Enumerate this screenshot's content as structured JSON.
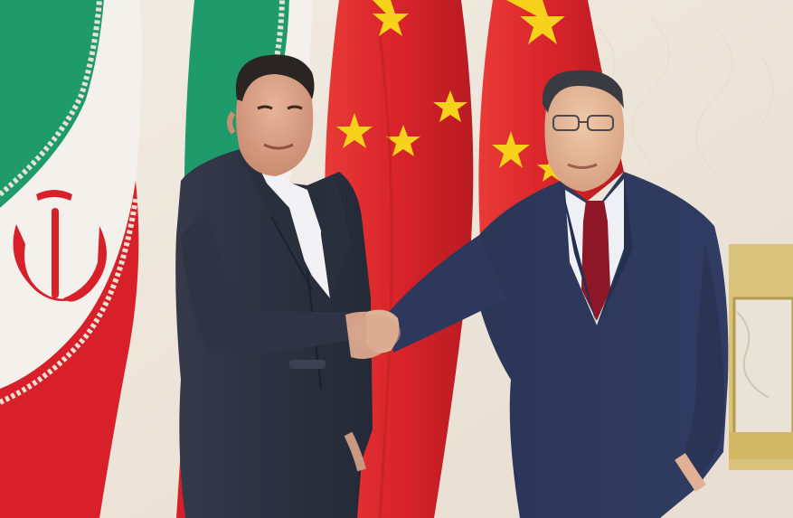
{
  "scene": {
    "subject": "handshake",
    "colors": {
      "iran_green": "#1f9a6a",
      "iran_white": "#f4f1ec",
      "iran_red": "#d7202a",
      "china_red": "#e0262c",
      "china_star": "#f6d21a",
      "wall": "#efe6da",
      "suit_dark": "#2c3140",
      "suit_navy": "#2b3556",
      "tie": "#8d1627"
    }
  }
}
